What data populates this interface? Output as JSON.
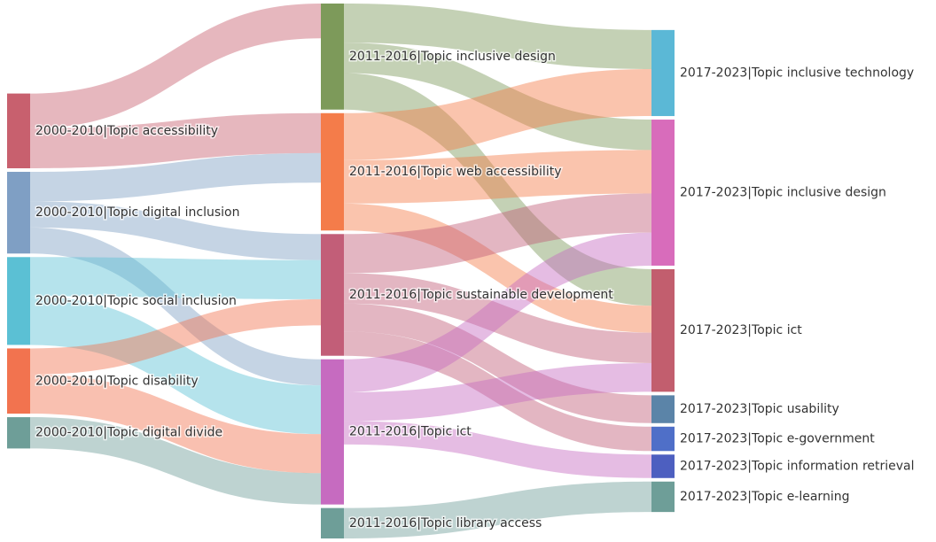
{
  "chart_data": {
    "type": "sankey",
    "columns": [
      [
        {
          "name": "2000-2010|Topic accessibility",
          "color": "#c8606e"
        },
        {
          "name": "2000-2010|Topic digital inclusion",
          "color": "#7f9fc4"
        },
        {
          "name": "2000-2010|Topic social inclusion",
          "color": "#5bc0d4"
        },
        {
          "name": "2000-2010|Topic disability",
          "color": "#f2734f"
        },
        {
          "name": "2000-2010|Topic digital divide",
          "color": "#6e9e98"
        }
      ],
      [
        {
          "name": "2011-2016|Topic inclusive design",
          "color": "#7d9a5a"
        },
        {
          "name": "2011-2016|Topic web accessibility",
          "color": "#f47c4a"
        },
        {
          "name": "2011-2016|Topic sustainable development",
          "color": "#c25e78"
        },
        {
          "name": "2011-2016|Topic ict",
          "color": "#c66bc0"
        },
        {
          "name": "2011-2016|Topic library access",
          "color": "#6e9e98"
        }
      ],
      [
        {
          "name": "2017-2023|Topic inclusive technology",
          "color": "#5bb8d6"
        },
        {
          "name": "2017-2023|Topic inclusive design",
          "color": "#d86cbb"
        },
        {
          "name": "2017-2023|Topic ict",
          "color": "#c25e6e"
        },
        {
          "name": "2017-2023|Topic usability",
          "color": "#5b84a8"
        },
        {
          "name": "2017-2023|Topic e-government",
          "color": "#4f6fc8"
        },
        {
          "name": "2017-2023|Topic information retrieval",
          "color": "#4d5fc0"
        },
        {
          "name": "2017-2023|Topic e-learning",
          "color": "#6e9e98"
        }
      ]
    ],
    "links": [
      {
        "source": "2000-2010|Topic accessibility",
        "target": "2011-2016|Topic inclusive design",
        "value": 40
      },
      {
        "source": "2000-2010|Topic accessibility",
        "target": "2011-2016|Topic web accessibility",
        "value": 46
      },
      {
        "source": "2000-2010|Topic digital inclusion",
        "target": "2011-2016|Topic web accessibility",
        "value": 34
      },
      {
        "source": "2000-2010|Topic digital inclusion",
        "target": "2011-2016|Topic sustainable development",
        "value": 30
      },
      {
        "source": "2000-2010|Topic digital inclusion",
        "target": "2011-2016|Topic ict",
        "value": 30
      },
      {
        "source": "2000-2010|Topic social inclusion",
        "target": "2011-2016|Topic sustainable development",
        "value": 45
      },
      {
        "source": "2000-2010|Topic social inclusion",
        "target": "2011-2016|Topic ict",
        "value": 56
      },
      {
        "source": "2000-2010|Topic disability",
        "target": "2011-2016|Topic sustainable development",
        "value": 30
      },
      {
        "source": "2000-2010|Topic disability",
        "target": "2011-2016|Topic ict",
        "value": 45
      },
      {
        "source": "2000-2010|Topic digital divide",
        "target": "2011-2016|Topic ict",
        "value": 36
      },
      {
        "source": "2011-2016|Topic inclusive design",
        "target": "2017-2023|Topic inclusive technology",
        "value": 45
      },
      {
        "source": "2011-2016|Topic inclusive design",
        "target": "2017-2023|Topic inclusive design",
        "value": 35
      },
      {
        "source": "2011-2016|Topic inclusive design",
        "target": "2017-2023|Topic ict",
        "value": 42
      },
      {
        "source": "2011-2016|Topic web accessibility",
        "target": "2017-2023|Topic inclusive technology",
        "value": 54
      },
      {
        "source": "2011-2016|Topic web accessibility",
        "target": "2017-2023|Topic inclusive design",
        "value": 50
      },
      {
        "source": "2011-2016|Topic web accessibility",
        "target": "2017-2023|Topic ict",
        "value": 31
      },
      {
        "source": "2011-2016|Topic sustainable development",
        "target": "2017-2023|Topic inclusive design",
        "value": 45
      },
      {
        "source": "2011-2016|Topic sustainable development",
        "target": "2017-2023|Topic ict",
        "value": 35
      },
      {
        "source": "2011-2016|Topic sustainable development",
        "target": "2017-2023|Topic usability",
        "value": 32
      },
      {
        "source": "2011-2016|Topic sustainable development",
        "target": "2017-2023|Topic e-government",
        "value": 28
      },
      {
        "source": "2011-2016|Topic ict",
        "target": "2017-2023|Topic inclusive design",
        "value": 38
      },
      {
        "source": "2011-2016|Topic ict",
        "target": "2017-2023|Topic ict",
        "value": 33
      },
      {
        "source": "2011-2016|Topic ict",
        "target": "2017-2023|Topic information retrieval",
        "value": 27
      },
      {
        "source": "2011-2016|Topic library access",
        "target": "2017-2023|Topic e-learning",
        "value": 35
      }
    ]
  }
}
